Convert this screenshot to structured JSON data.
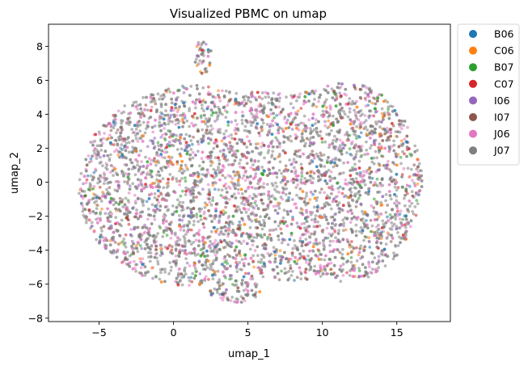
{
  "chart_data": {
    "type": "scatter",
    "title": "Visualized PBMC on umap",
    "xlabel": "umap_1",
    "ylabel": "umap_2",
    "xlim": [
      -8.4,
      18.6
    ],
    "ylim": [
      -8.2,
      9.3
    ],
    "xticks": [
      -5,
      0,
      5,
      10,
      15
    ],
    "yticks": [
      -8,
      -6,
      -4,
      -2,
      0,
      2,
      4,
      6,
      8
    ],
    "xtick_labels": [
      "−5",
      "0",
      "5",
      "10",
      "15"
    ],
    "ytick_labels": [
      "−8",
      "−6",
      "−4",
      "−2",
      "0",
      "2",
      "4",
      "6",
      "8"
    ],
    "grid": false,
    "legend_position": "outside-right-top",
    "series": [
      {
        "name": "B06",
        "color": "#1f77b4"
      },
      {
        "name": "C06",
        "color": "#ff7f0e"
      },
      {
        "name": "B07",
        "color": "#2ca02c"
      },
      {
        "name": "C07",
        "color": "#d62728"
      },
      {
        "name": "I06",
        "color": "#9467bd"
      },
      {
        "name": "I07",
        "color": "#8c564b"
      },
      {
        "name": "J06",
        "color": "#e377c2"
      },
      {
        "name": "J07",
        "color": "#7f7f7f"
      }
    ]
  }
}
